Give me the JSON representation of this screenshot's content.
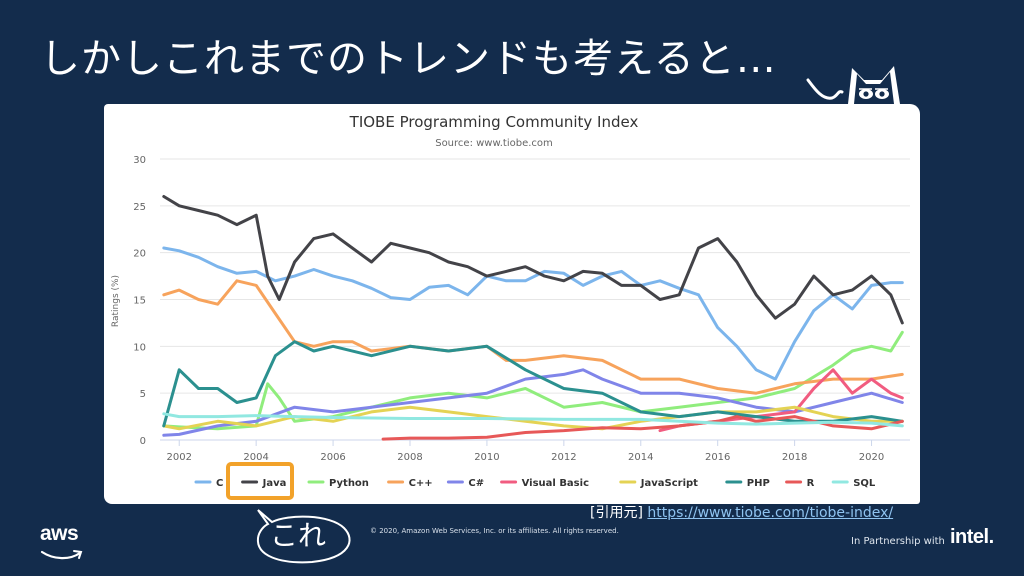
{
  "slide": {
    "title": "しかしこれまでのトレンドも考えると…",
    "citation_prefix": "[引用元]",
    "citation_url": "https://www.tiobe.com/tiobe-index/",
    "bubble_text": "これ",
    "copyright": "© 2020, Amazon Web Services, Inc. or its affiliates. All rights reserved.",
    "aws_logo_text": "aws",
    "partner_text": "In Partnership with",
    "intel_logo_text": "intel."
  },
  "colors": {
    "background": "#132c4c",
    "highlight": "#f2a22a"
  },
  "chart_data": {
    "type": "line",
    "title": "TIOBE Programming Community Index",
    "subtitle": "Source: www.tiobe.com",
    "ylabel": "Ratings (%)",
    "xlabel": "",
    "xlim": [
      2001.5,
      2021.0
    ],
    "ylim": [
      0,
      30
    ],
    "x_ticks": [
      2002,
      2004,
      2006,
      2008,
      2010,
      2012,
      2014,
      2016,
      2018,
      2020
    ],
    "y_ticks": [
      0,
      5,
      10,
      15,
      20,
      25,
      30
    ],
    "grid": true,
    "legend_position": "bottom",
    "highlighted_series": "Java",
    "series": [
      {
        "name": "C",
        "color": "#7cb5ec",
        "x": [
          2001.6,
          2002,
          2002.5,
          2003,
          2003.5,
          2004,
          2004.5,
          2005,
          2005.5,
          2006,
          2006.5,
          2007,
          2007.5,
          2008,
          2008.5,
          2009,
          2009.5,
          2010,
          2010.5,
          2011,
          2011.5,
          2012,
          2012.5,
          2013,
          2013.5,
          2014,
          2014.5,
          2015,
          2015.5,
          2016,
          2016.5,
          2017,
          2017.5,
          2018,
          2018.5,
          2019,
          2019.5,
          2020,
          2020.5,
          2020.8
        ],
        "y": [
          20.5,
          20.2,
          19.5,
          18.5,
          17.8,
          18.0,
          17.0,
          17.5,
          18.2,
          17.5,
          17.0,
          16.2,
          15.2,
          15.0,
          16.3,
          16.5,
          15.5,
          17.5,
          17.0,
          17.0,
          18.0,
          17.8,
          16.5,
          17.5,
          18.0,
          16.5,
          17.0,
          16.2,
          15.5,
          12.0,
          10.0,
          7.5,
          6.5,
          10.5,
          13.8,
          15.5,
          14.0,
          16.5,
          16.8,
          16.8
        ]
      },
      {
        "name": "Java",
        "color": "#434348",
        "x": [
          2001.6,
          2002,
          2002.5,
          2003,
          2003.5,
          2004,
          2004.3,
          2004.6,
          2005,
          2005.5,
          2006,
          2006.5,
          2007,
          2007.5,
          2008,
          2008.5,
          2009,
          2009.5,
          2010,
          2010.5,
          2011,
          2011.5,
          2012,
          2012.5,
          2013,
          2013.5,
          2014,
          2014.5,
          2015,
          2015.5,
          2016,
          2016.5,
          2017,
          2017.5,
          2018,
          2018.5,
          2019,
          2019.5,
          2020,
          2020.5,
          2020.8
        ],
        "y": [
          26.0,
          25.0,
          24.5,
          24.0,
          23.0,
          24.0,
          17.5,
          15.0,
          19.0,
          21.5,
          22.0,
          20.5,
          19.0,
          21.0,
          20.5,
          20.0,
          19.0,
          18.5,
          17.5,
          18.0,
          18.5,
          17.5,
          17.0,
          18.0,
          17.8,
          16.5,
          16.5,
          15.0,
          15.5,
          20.5,
          21.5,
          19.0,
          15.5,
          13.0,
          14.5,
          17.5,
          15.5,
          16.0,
          17.5,
          15.5,
          12.5
        ]
      },
      {
        "name": "Python",
        "color": "#90ed7d",
        "x": [
          2001.6,
          2002,
          2003,
          2004,
          2004.3,
          2004.6,
          2005,
          2006,
          2007,
          2008,
          2009,
          2010,
          2011,
          2012,
          2013,
          2014,
          2015,
          2016,
          2017,
          2018,
          2019,
          2019.5,
          2020,
          2020.5,
          2020.8
        ],
        "y": [
          1.5,
          1.4,
          1.2,
          1.5,
          6.0,
          4.5,
          2.0,
          2.5,
          3.5,
          4.5,
          5.0,
          4.5,
          5.5,
          3.5,
          4.0,
          3.0,
          3.5,
          4.0,
          4.5,
          5.5,
          8.0,
          9.5,
          10.0,
          9.5,
          11.5
        ]
      },
      {
        "name": "C++",
        "color": "#f7a35c",
        "x": [
          2001.6,
          2002,
          2002.5,
          2003,
          2003.5,
          2004,
          2004.5,
          2005,
          2005.5,
          2006,
          2006.5,
          2007,
          2008,
          2009,
          2010,
          2010.5,
          2011,
          2012,
          2013,
          2014,
          2015,
          2016,
          2017,
          2018,
          2019,
          2020,
          2020.8
        ],
        "y": [
          15.5,
          16.0,
          15.0,
          14.5,
          17.0,
          16.5,
          13.5,
          10.5,
          10.0,
          10.5,
          10.5,
          9.5,
          10.0,
          9.5,
          10.0,
          8.5,
          8.5,
          9.0,
          8.5,
          6.5,
          6.5,
          5.5,
          5.0,
          6.0,
          6.5,
          6.5,
          7.0
        ]
      },
      {
        "name": "C#",
        "color": "#8085e9",
        "x": [
          2001.6,
          2002,
          2003,
          2004,
          2005,
          2006,
          2007,
          2008,
          2009,
          2010,
          2011,
          2012,
          2012.5,
          2013,
          2014,
          2015,
          2016,
          2017,
          2018,
          2019,
          2020,
          2020.8
        ],
        "y": [
          0.5,
          0.6,
          1.5,
          2.0,
          3.5,
          3.0,
          3.5,
          4.0,
          4.5,
          5.0,
          6.5,
          7.0,
          7.5,
          6.5,
          5.0,
          5.0,
          4.5,
          3.5,
          3.0,
          4.0,
          5.0,
          4.0
        ]
      },
      {
        "name": "Visual Basic",
        "color": "#f15c80",
        "x": [
          2014.5,
          2015,
          2016,
          2017,
          2018,
          2018.5,
          2019,
          2019.5,
          2020,
          2020.5,
          2020.8
        ],
        "y": [
          1.0,
          1.5,
          2.0,
          2.5,
          3.0,
          5.5,
          7.5,
          5.0,
          6.5,
          5.0,
          4.5
        ]
      },
      {
        "name": "JavaScript",
        "color": "#e4d354",
        "x": [
          2001.6,
          2002,
          2003,
          2004,
          2005,
          2006,
          2007,
          2008,
          2009,
          2010,
          2011,
          2012,
          2013,
          2014,
          2015,
          2016,
          2017,
          2018,
          2019,
          2020,
          2020.8
        ],
        "y": [
          1.5,
          1.2,
          2.0,
          1.5,
          2.5,
          2.0,
          3.0,
          3.5,
          3.0,
          2.5,
          2.0,
          1.5,
          1.2,
          2.0,
          2.5,
          3.0,
          3.0,
          3.5,
          2.5,
          2.0,
          2.0
        ]
      },
      {
        "name": "PHP",
        "color": "#2b908f",
        "x": [
          2001.6,
          2002,
          2002.5,
          2003,
          2003.5,
          2004,
          2004.5,
          2005,
          2005.5,
          2006,
          2007,
          2008,
          2009,
          2010,
          2011,
          2012,
          2013,
          2014,
          2015,
          2016,
          2017,
          2018,
          2019,
          2020,
          2020.8
        ],
        "y": [
          1.5,
          7.5,
          5.5,
          5.5,
          4.0,
          4.5,
          9.0,
          10.5,
          9.5,
          10.0,
          9.0,
          10.0,
          9.5,
          10.0,
          7.5,
          5.5,
          5.0,
          3.0,
          2.5,
          3.0,
          2.5,
          2.0,
          2.0,
          2.5,
          2.0
        ]
      },
      {
        "name": "R",
        "color": "#e75858",
        "x": [
          2007.3,
          2008,
          2009,
          2010,
          2011,
          2012,
          2013,
          2014,
          2015,
          2016,
          2016.5,
          2017,
          2018,
          2019,
          2020,
          2020.8
        ],
        "y": [
          0.1,
          0.2,
          0.2,
          0.3,
          0.8,
          1.0,
          1.3,
          1.2,
          1.5,
          2.0,
          2.5,
          2.0,
          2.5,
          1.5,
          1.2,
          2.0
        ]
      },
      {
        "name": "SQL",
        "color": "#91e8e1",
        "x": [
          2001.6,
          2002,
          2003,
          2004,
          2005,
          2006,
          2008,
          2010,
          2012,
          2014,
          2015,
          2016,
          2017,
          2018,
          2019,
          2020,
          2020.8
        ],
        "y": [
          2.8,
          2.5,
          2.5,
          2.6,
          2.5,
          2.4,
          2.3,
          2.3,
          2.2,
          2.2,
          2.0,
          1.8,
          1.7,
          1.8,
          1.9,
          1.8,
          1.5
        ]
      }
    ]
  }
}
